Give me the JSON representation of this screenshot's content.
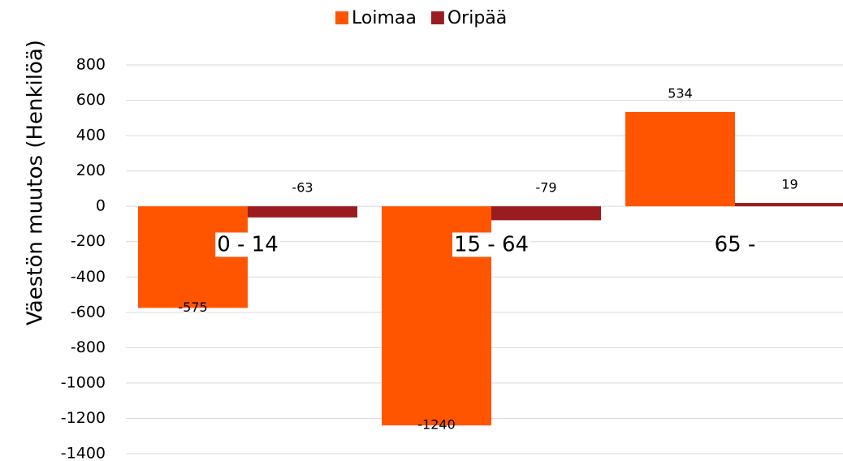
{
  "chart_data": {
    "type": "bar",
    "y_label": "Väestön muutos (Henkilöä)",
    "categories": [
      "0 - 14",
      "15 - 64",
      "65 -"
    ],
    "series": [
      {
        "name": "Loimaa",
        "color": "#ff5500",
        "values": [
          -575,
          -1240,
          534
        ]
      },
      {
        "name": "Oripää",
        "color": "#9b1c20",
        "values": [
          -63,
          -79,
          19
        ]
      }
    ],
    "ylim": [
      -1400,
      800
    ],
    "yticks": [
      -1400,
      -1200,
      -1000,
      -800,
      -600,
      -400,
      -200,
      0,
      200,
      400,
      600,
      800
    ],
    "grid": true,
    "legend": "top"
  }
}
